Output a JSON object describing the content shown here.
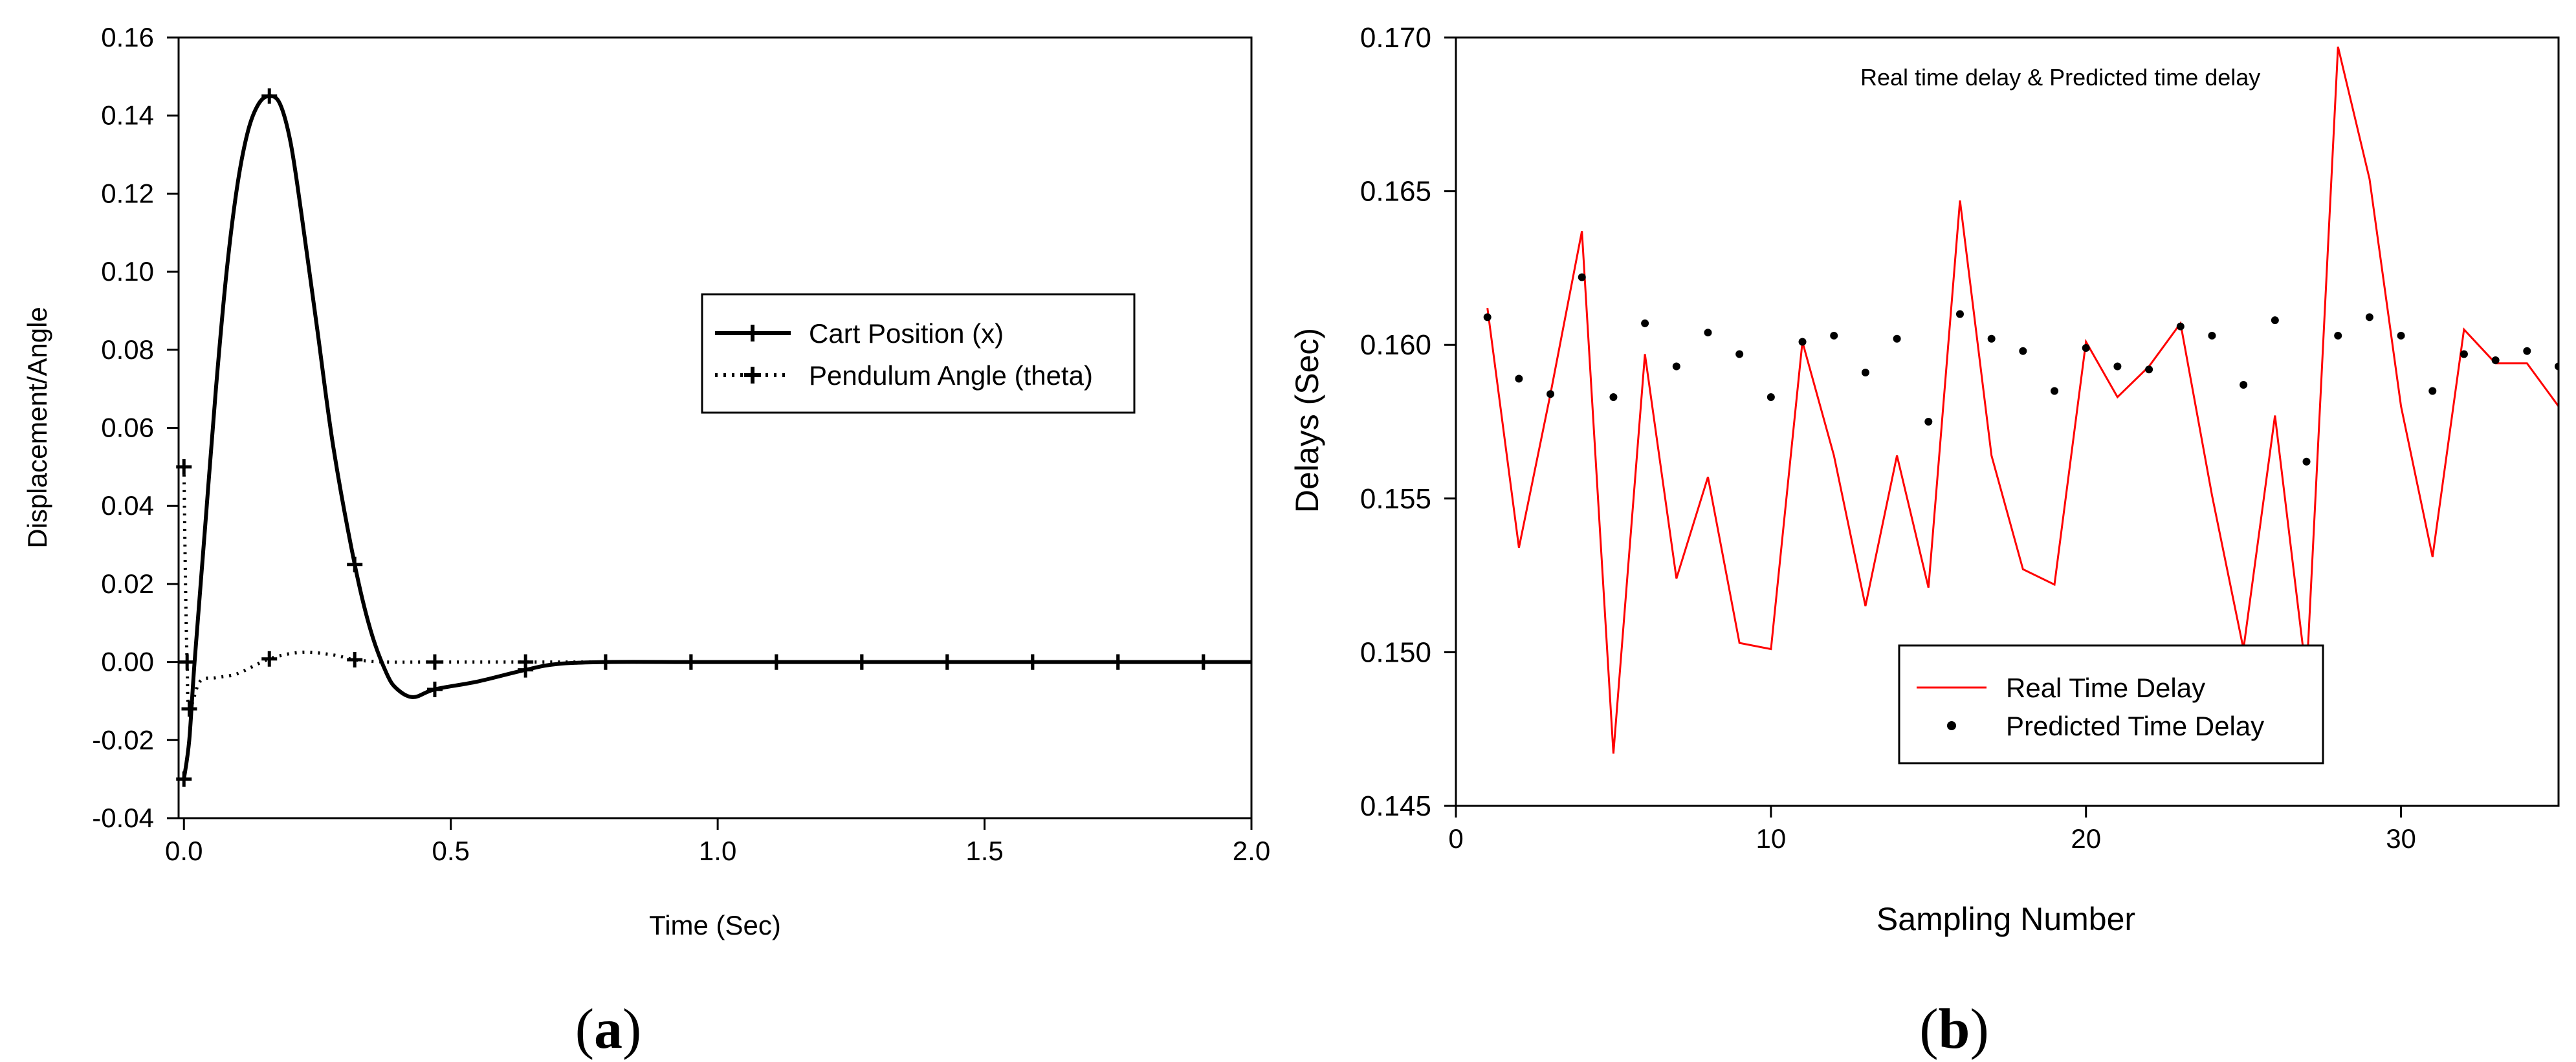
{
  "chart_data": [
    {
      "panel": "a",
      "type": "line",
      "title": "",
      "xlabel": "Time (Sec)",
      "ylabel": "Displacement/Angle",
      "xlim": [
        -0.01,
        2.0
      ],
      "ylim": [
        -0.04,
        0.16
      ],
      "x_ticks": [
        "0.0",
        "0.5",
        "1.0",
        "1.5",
        "2.0"
      ],
      "y_ticks": [
        "-0.04",
        "-0.02",
        "0.00",
        "0.02",
        "0.04",
        "0.06",
        "0.08",
        "0.10",
        "0.12",
        "0.14",
        "0.16"
      ],
      "grid": false,
      "legend_position": "center-right",
      "series": [
        {
          "name": "Cart Position (x)",
          "line_style": "solid",
          "marker": "plus",
          "color": "#000000",
          "points": [
            [
              0.0,
              -0.03
            ],
            [
              0.01,
              -0.02
            ],
            [
              0.02,
              0.0
            ],
            [
              0.04,
              0.035
            ],
            [
              0.06,
              0.07
            ],
            [
              0.08,
              0.1
            ],
            [
              0.1,
              0.122
            ],
            [
              0.12,
              0.136
            ],
            [
              0.14,
              0.143
            ],
            [
              0.16,
              0.145
            ],
            [
              0.18,
              0.143
            ],
            [
              0.2,
              0.133
            ],
            [
              0.22,
              0.115
            ],
            [
              0.25,
              0.085
            ],
            [
              0.28,
              0.055
            ],
            [
              0.32,
              0.025
            ],
            [
              0.35,
              0.008
            ],
            [
              0.38,
              -0.003
            ],
            [
              0.4,
              -0.007
            ],
            [
              0.43,
              -0.009
            ],
            [
              0.47,
              -0.007
            ],
            [
              0.55,
              -0.005
            ],
            [
              0.64,
              -0.002
            ],
            [
              0.7,
              -0.0005
            ],
            [
              0.79,
              0.0
            ],
            [
              0.95,
              0.0
            ],
            [
              1.11,
              0.0
            ],
            [
              1.27,
              0.0
            ],
            [
              1.43,
              0.0
            ],
            [
              1.59,
              0.0
            ],
            [
              1.75,
              0.0
            ],
            [
              1.91,
              0.0
            ],
            [
              2.0,
              0.0
            ]
          ],
          "marker_x": [
            0.0,
            0.16,
            0.32,
            0.47,
            0.64,
            0.79,
            0.95,
            1.11,
            1.27,
            1.43,
            1.59,
            1.75,
            1.91
          ]
        },
        {
          "name": "Pendulum Angle (theta)",
          "line_style": "dotted",
          "marker": "plus",
          "color": "#000000",
          "points": [
            [
              0.0,
              0.05
            ],
            [
              0.003,
              0.02
            ],
            [
              0.006,
              0.0
            ],
            [
              0.01,
              -0.012
            ],
            [
              0.03,
              -0.005
            ],
            [
              0.06,
              -0.004
            ],
            [
              0.1,
              -0.003
            ],
            [
              0.16,
              0.0008
            ],
            [
              0.22,
              0.0025
            ],
            [
              0.28,
              0.0018
            ],
            [
              0.32,
              0.0006
            ],
            [
              0.38,
              0.0
            ],
            [
              0.47,
              0.0
            ],
            [
              0.64,
              0.0
            ],
            [
              0.79,
              0.0
            ],
            [
              0.95,
              0.0
            ],
            [
              1.11,
              0.0
            ],
            [
              1.27,
              0.0
            ],
            [
              1.43,
              0.0
            ],
            [
              1.59,
              0.0
            ],
            [
              1.75,
              0.0
            ],
            [
              1.91,
              0.0
            ],
            [
              2.0,
              0.0
            ]
          ],
          "marker_points": [
            [
              0.0,
              0.05
            ],
            [
              0.006,
              0.0
            ],
            [
              0.01,
              -0.012
            ],
            [
              0.16,
              0.0008
            ],
            [
              0.32,
              0.0006
            ],
            [
              0.47,
              0.0
            ],
            [
              0.64,
              0.0
            ],
            [
              0.79,
              0.0
            ],
            [
              0.95,
              0.0
            ],
            [
              1.11,
              0.0
            ],
            [
              1.27,
              0.0
            ],
            [
              1.43,
              0.0
            ],
            [
              1.59,
              0.0
            ],
            [
              1.75,
              0.0
            ],
            [
              1.91,
              0.0
            ]
          ]
        }
      ]
    },
    {
      "panel": "b",
      "type": "line",
      "title": "Real time delay & Predicted time delay",
      "xlabel": "Sampling Number",
      "ylabel": "Delays (Sec)",
      "xlim": [
        0,
        35
      ],
      "ylim": [
        0.145,
        0.17
      ],
      "x_ticks": [
        "0",
        "10",
        "20",
        "30"
      ],
      "y_ticks": [
        "0.145",
        "0.150",
        "0.155",
        "0.160",
        "0.165",
        "0.170"
      ],
      "grid": false,
      "legend_position": "bottom-center",
      "series": [
        {
          "name": "Real Time Delay",
          "line_style": "solid",
          "color": "#ff0000",
          "x": [
            1,
            2,
            3,
            4,
            5,
            6,
            7,
            8,
            9,
            10,
            11,
            12,
            13,
            14,
            15,
            16,
            17,
            18,
            19,
            20,
            21,
            22,
            23,
            24,
            25,
            26,
            27,
            28,
            29,
            30,
            31,
            32,
            33,
            34,
            35
          ],
          "values": [
            0.1612,
            0.1534,
            0.1584,
            0.1637,
            0.1467,
            0.1597,
            0.1524,
            0.1557,
            0.1503,
            0.1501,
            0.1601,
            0.1564,
            0.1515,
            0.1564,
            0.1521,
            0.1647,
            0.1564,
            0.1527,
            0.1522,
            0.1601,
            0.1583,
            0.1593,
            0.1607,
            0.1551,
            0.1501,
            0.1577,
            0.1492,
            0.1697,
            0.1654,
            0.158,
            0.1531,
            0.1605,
            0.1594,
            0.1594,
            0.158
          ]
        },
        {
          "name": "Predicted Time Delay",
          "line_style": "none",
          "marker": "dot",
          "color": "#000000",
          "x": [
            1,
            2,
            3,
            4,
            5,
            6,
            7,
            8,
            9,
            10,
            11,
            12,
            13,
            14,
            15,
            16,
            17,
            18,
            19,
            20,
            21,
            22,
            23,
            24,
            25,
            26,
            27,
            28,
            29,
            30,
            31,
            32,
            33,
            34,
            35
          ],
          "values": [
            0.1609,
            0.1589,
            0.1584,
            0.1622,
            0.1583,
            0.1607,
            0.1593,
            0.1604,
            0.1597,
            0.1583,
            0.1601,
            0.1603,
            0.1591,
            0.1602,
            0.1575,
            0.161,
            0.1602,
            0.1598,
            0.1585,
            0.1599,
            0.1593,
            0.1592,
            0.1606,
            0.1603,
            0.1587,
            0.1608,
            0.1562,
            0.1603,
            0.1609,
            0.1603,
            0.1585,
            0.1597,
            0.1595,
            0.1598,
            0.1593
          ]
        }
      ]
    }
  ],
  "panel_labels": {
    "a": "(a)",
    "b": "(b)"
  }
}
